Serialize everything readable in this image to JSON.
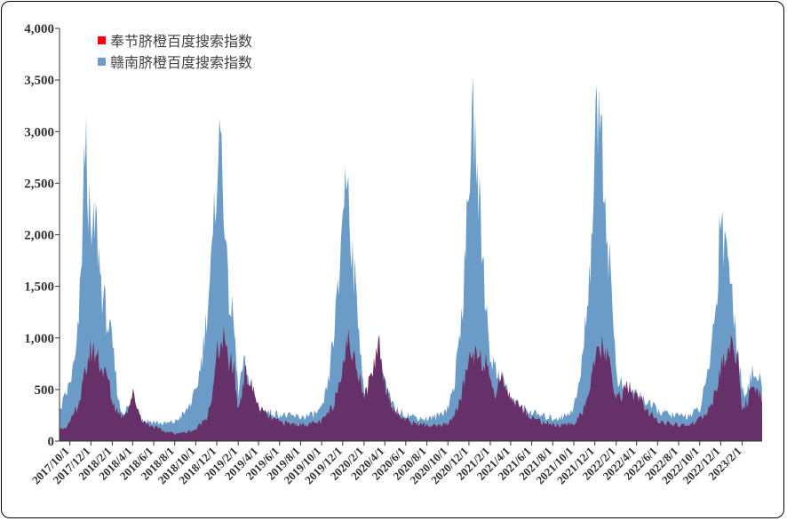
{
  "chart_data": {
    "type": "area",
    "title": "",
    "xlabel": "",
    "ylabel": "",
    "ylim": [
      0,
      4000
    ],
    "yticks": [
      0,
      500,
      1000,
      1500,
      2000,
      2500,
      3000,
      3500,
      4000
    ],
    "ytick_labels": [
      "0",
      "500",
      "1,000",
      "1,500",
      "2,000",
      "2,500",
      "3,000",
      "3,500",
      "4,000"
    ],
    "x_start": "2017/9/1",
    "x_end": "2023/3/31",
    "xtick_labels": [
      "2017/10/1",
      "2017/12/1",
      "2018/2/1",
      "2018/4/1",
      "2018/6/1",
      "2018/8/1",
      "2018/10/1",
      "2018/12/1",
      "2019/2/1",
      "2019/4/1",
      "2019/6/1",
      "2019/8/1",
      "2019/10/1",
      "2019/12/1",
      "2020/2/1",
      "2020/4/1",
      "2020/6/1",
      "2020/8/1",
      "2020/10/1",
      "2020/12/1",
      "2021/2/1",
      "2021/4/1",
      "2021/6/1",
      "2021/8/1",
      "2021/10/1",
      "2021/12/1",
      "2022/2/1",
      "2022/4/1",
      "2022/6/1",
      "2022/8/1",
      "2022/10/1",
      "2022/12/1",
      "2023/2/1"
    ],
    "legend_position": "top-left",
    "grid": false,
    "series": [
      {
        "name": "奉节脐橙百度搜索指数",
        "color": "#ff0000",
        "x": [
          "2017/9/1",
          "2017/10/1",
          "2017/11/1",
          "2017/11/20",
          "2017/12/1",
          "2017/12/20",
          "2018/1/1",
          "2018/1/20",
          "2018/2/1",
          "2018/2/20",
          "2018/3/1",
          "2018/3/20",
          "2018/4/1",
          "2018/4/20",
          "2018/5/1",
          "2018/6/1",
          "2018/7/1",
          "2018/8/1",
          "2018/9/1",
          "2018/10/1",
          "2018/11/1",
          "2018/11/20",
          "2018/12/1",
          "2018/12/20",
          "2019/1/1",
          "2019/1/20",
          "2019/2/1",
          "2019/2/10",
          "2019/2/20",
          "2019/3/1",
          "2019/3/20",
          "2019/4/1",
          "2019/5/1",
          "2019/6/1",
          "2019/7/1",
          "2019/8/1",
          "2019/9/1",
          "2019/10/1",
          "2019/11/1",
          "2019/11/20",
          "2019/12/1",
          "2019/12/20",
          "2020/1/1",
          "2020/1/20",
          "2020/2/1",
          "2020/2/15",
          "2020/3/1",
          "2020/3/15",
          "2020/4/1",
          "2020/4/20",
          "2020/5/1",
          "2020/6/1",
          "2020/7/1",
          "2020/8/1",
          "2020/9/1",
          "2020/10/1",
          "2020/11/1",
          "2020/11/20",
          "2020/12/1",
          "2020/12/20",
          "2021/1/1",
          "2021/1/20",
          "2021/2/1",
          "2021/2/20",
          "2021/3/1",
          "2021/3/20",
          "2021/4/1",
          "2021/5/1",
          "2021/6/1",
          "2021/7/1",
          "2021/8/1",
          "2021/9/1",
          "2021/10/1",
          "2021/11/1",
          "2021/11/20",
          "2021/12/1",
          "2021/12/20",
          "2022/1/1",
          "2022/1/20",
          "2022/2/1",
          "2022/2/20",
          "2022/3/1",
          "2022/3/20",
          "2022/4/1",
          "2022/4/20",
          "2022/5/1",
          "2022/6/1",
          "2022/7/1",
          "2022/8/1",
          "2022/9/1",
          "2022/10/1",
          "2022/11/1",
          "2022/11/20",
          "2022/12/1",
          "2022/12/20",
          "2023/1/1",
          "2023/1/20",
          "2023/2/1",
          "2023/2/20",
          "2023/3/1",
          "2023/3/31"
        ],
        "values": [
          120,
          180,
          450,
          800,
          950,
          900,
          750,
          650,
          400,
          300,
          250,
          350,
          500,
          300,
          200,
          150,
          100,
          80,
          90,
          120,
          250,
          500,
          900,
          1050,
          850,
          750,
          300,
          500,
          700,
          650,
          500,
          350,
          250,
          200,
          180,
          170,
          180,
          200,
          350,
          600,
          850,
          1050,
          850,
          700,
          450,
          600,
          800,
          1050,
          600,
          400,
          300,
          220,
          180,
          160,
          150,
          180,
          350,
          650,
          850,
          950,
          900,
          800,
          550,
          500,
          700,
          550,
          450,
          350,
          250,
          200,
          170,
          160,
          180,
          350,
          600,
          800,
          1000,
          900,
          700,
          450,
          480,
          600,
          500,
          450,
          400,
          300,
          220,
          180,
          160,
          170,
          220,
          350,
          550,
          750,
          900,
          1000,
          900,
          300,
          450,
          500,
          450
        ]
      },
      {
        "name": "赣南脐橙百度搜索指数",
        "color": "#6b9cc8",
        "x": [
          "2017/9/1",
          "2017/10/1",
          "2017/10/20",
          "2017/11/1",
          "2017/11/15",
          "2017/12/1",
          "2017/12/15",
          "2018/1/1",
          "2018/1/20",
          "2018/2/1",
          "2018/2/20",
          "2018/3/1",
          "2018/3/20",
          "2018/4/1",
          "2018/4/20",
          "2018/5/1",
          "2018/6/1",
          "2018/7/1",
          "2018/8/1",
          "2018/9/1",
          "2018/10/1",
          "2018/10/20",
          "2018/11/1",
          "2018/11/20",
          "2018/12/1",
          "2018/12/15",
          "2019/1/1",
          "2019/1/20",
          "2019/2/1",
          "2019/2/10",
          "2019/2/20",
          "2019/3/1",
          "2019/3/20",
          "2019/4/1",
          "2019/5/1",
          "2019/6/1",
          "2019/7/1",
          "2019/8/1",
          "2019/9/1",
          "2019/10/1",
          "2019/10/20",
          "2019/11/1",
          "2019/11/20",
          "2019/12/1",
          "2019/12/15",
          "2020/1/1",
          "2020/1/20",
          "2020/2/1",
          "2020/2/15",
          "2020/3/1",
          "2020/3/15",
          "2020/4/1",
          "2020/4/20",
          "2020/5/1",
          "2020/6/1",
          "2020/7/1",
          "2020/8/1",
          "2020/9/1",
          "2020/10/1",
          "2020/10/20",
          "2020/11/1",
          "2020/11/20",
          "2020/12/1",
          "2020/12/15",
          "2021/1/1",
          "2021/1/20",
          "2021/2/1",
          "2021/2/20",
          "2021/3/1",
          "2021/3/20",
          "2021/4/1",
          "2021/5/1",
          "2021/6/1",
          "2021/7/1",
          "2021/8/1",
          "2021/9/1",
          "2021/10/1",
          "2021/10/20",
          "2021/11/1",
          "2021/11/20",
          "2021/12/1",
          "2021/12/15",
          "2022/1/1",
          "2022/1/20",
          "2022/2/1",
          "2022/2/20",
          "2022/3/1",
          "2022/3/20",
          "2022/4/1",
          "2022/4/20",
          "2022/5/1",
          "2022/6/1",
          "2022/7/1",
          "2022/8/1",
          "2022/9/1",
          "2022/10/1",
          "2022/10/20",
          "2022/11/1",
          "2022/11/20",
          "2022/12/1",
          "2022/12/10",
          "2022/12/20",
          "2023/1/1",
          "2023/1/20",
          "2023/2/1",
          "2023/2/20",
          "2023/3/1",
          "2023/3/31"
        ],
        "values": [
          300,
          600,
          900,
          1600,
          3200,
          2000,
          2300,
          1600,
          1200,
          1000,
          400,
          300,
          350,
          300,
          250,
          220,
          200,
          180,
          200,
          300,
          500,
          900,
          1300,
          2000,
          2900,
          3150,
          1600,
          1200,
          500,
          700,
          800,
          600,
          400,
          330,
          300,
          280,
          260,
          250,
          270,
          320,
          600,
          1000,
          1600,
          2500,
          2800,
          1800,
          1100,
          450,
          500,
          700,
          900,
          600,
          400,
          330,
          280,
          250,
          230,
          260,
          350,
          600,
          1000,
          1800,
          2800,
          3350,
          2400,
          1400,
          900,
          700,
          700,
          550,
          450,
          350,
          300,
          260,
          240,
          250,
          350,
          650,
          1100,
          2000,
          3000,
          3700,
          2400,
          1500,
          700,
          550,
          550,
          500,
          500,
          450,
          400,
          320,
          280,
          260,
          270,
          330,
          600,
          900,
          1500,
          2600,
          2000,
          2200,
          1500,
          1000,
          500,
          600,
          700,
          600
        ]
      }
    ]
  }
}
